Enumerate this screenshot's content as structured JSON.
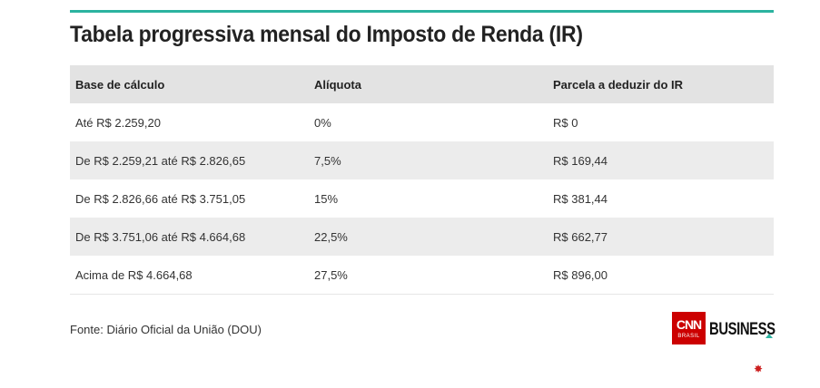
{
  "title": "Tabela progressiva mensal do Imposto de Renda (IR)",
  "table": {
    "headers": [
      "Base de cálculo",
      "Alíquota",
      "Parcela a deduzir do IR"
    ],
    "rows": [
      [
        "Até R$ 2.259,20",
        "0%",
        "R$ 0"
      ],
      [
        "De R$ 2.259,21 até R$ 2.826,65",
        "7,5%",
        "R$ 169,44"
      ],
      [
        "De R$ 2.826,66 até R$ 3.751,05",
        "15%",
        "R$ 381,44"
      ],
      [
        "De R$ 3.751,06 até R$ 4.664,68",
        "22,5%",
        "R$ 662,77"
      ],
      [
        "Acima de R$ 4.664,68",
        "27,5%",
        "R$ 896,00"
      ]
    ]
  },
  "source": "Fonte: Diário Oficial da União (DOU)",
  "logo": {
    "mark": "CNN",
    "sub": "BRASIL",
    "wordmark": "BUSINESS",
    "colors": {
      "red": "#cc0000",
      "accent": "#2bb3a0"
    }
  },
  "decor_icon": "red-sparkle-icon"
}
